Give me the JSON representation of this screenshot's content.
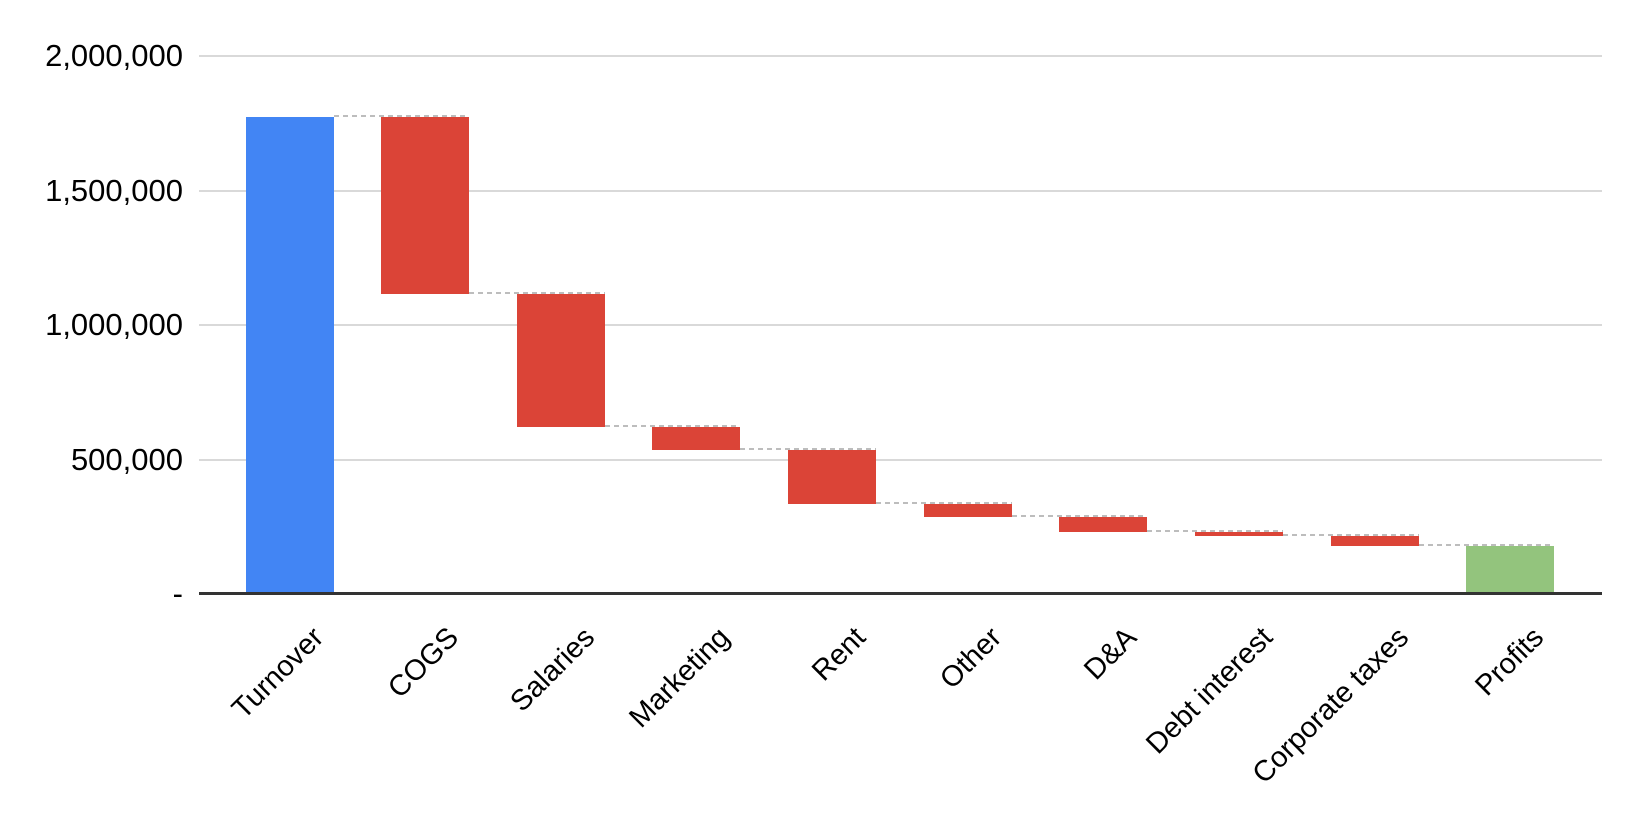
{
  "chart_data": {
    "type": "bar",
    "subtype": "waterfall",
    "title": "",
    "xlabel": "",
    "ylabel": "",
    "legend": "none",
    "grid": "horizontal",
    "connectors": "dashed",
    "categories": [
      "Turnover",
      "COGS",
      "Salaries",
      "Marketing",
      "Rent",
      "Other",
      "D&A",
      "Debt interest",
      "Corporate taxes",
      "Profits"
    ],
    "bars": [
      {
        "label": "Turnover",
        "role": "initial",
        "start": 0,
        "end": 1775000,
        "delta": 1775000
      },
      {
        "label": "COGS",
        "role": "decrease",
        "start": 1775000,
        "end": 1115000,
        "delta": -660000
      },
      {
        "label": "Salaries",
        "role": "decrease",
        "start": 1115000,
        "end": 620000,
        "delta": -495000
      },
      {
        "label": "Marketing",
        "role": "decrease",
        "start": 620000,
        "end": 535000,
        "delta": -85000
      },
      {
        "label": "Rent",
        "role": "decrease",
        "start": 535000,
        "end": 335000,
        "delta": -200000
      },
      {
        "label": "Other",
        "role": "decrease",
        "start": 335000,
        "end": 285000,
        "delta": -50000
      },
      {
        "label": "D&A",
        "role": "decrease",
        "start": 285000,
        "end": 230000,
        "delta": -55000
      },
      {
        "label": "Debt interest",
        "role": "decrease",
        "start": 230000,
        "end": 215000,
        "delta": -15000
      },
      {
        "label": "Corporate taxes",
        "role": "decrease",
        "start": 215000,
        "end": 180000,
        "delta": -35000
      },
      {
        "label": "Profits",
        "role": "total",
        "start": 0,
        "end": 180000,
        "delta": 180000
      }
    ],
    "y_axis": {
      "min": 0,
      "max": 2000000,
      "tick_interval": 500000,
      "ticks": [
        {
          "value": 2000000,
          "label": "2,000,000"
        },
        {
          "value": 1500000,
          "label": "1,500,000"
        },
        {
          "value": 1000000,
          "label": "1,000,000"
        },
        {
          "value": 500000,
          "label": "500,000"
        },
        {
          "value": 0,
          "label": "-"
        }
      ]
    },
    "colors": {
      "initial": "#4285F4",
      "decrease": "#DB4437",
      "total": "#93C47D",
      "connector": "#BDBDBD",
      "gridline": "#D9D9D9",
      "axis_line": "#333333",
      "label": "#000000"
    }
  }
}
